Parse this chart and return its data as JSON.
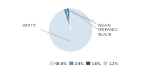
{
  "slices": [
    94.8,
    2.4,
    1.6,
    1.2
  ],
  "colors": [
    "#d6e4ef",
    "#5e8faa",
    "#1e4d72",
    "#b8cfe0"
  ],
  "legend_labels": [
    "94.8%",
    "2.4%",
    "1.6%",
    "1.2%"
  ],
  "legend_colors": [
    "#d6e4ef",
    "#5e8faa",
    "#1e4d72",
    "#b8cfe0"
  ],
  "white_label": "WHITE",
  "asian_label": "ASIAN",
  "hispanic_label": "HISPANIC",
  "black_label": "BLACK",
  "bg_color": "#ffffff",
  "label_color": "#555555",
  "line_color": "#aaaaaa",
  "font_size": 4.5
}
